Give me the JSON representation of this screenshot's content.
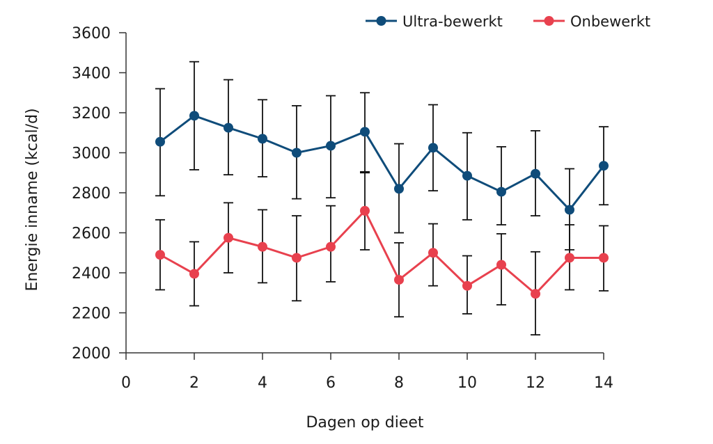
{
  "chart_data": {
    "type": "line",
    "title": "",
    "xlabel": "Dagen op dieet",
    "ylabel": "Energie inname (kcal/d)",
    "xlim": [
      0,
      14
    ],
    "ylim": [
      2000,
      3600
    ],
    "xticks": [
      0,
      2,
      4,
      6,
      8,
      10,
      12,
      14
    ],
    "yticks": [
      2000,
      2200,
      2400,
      2600,
      2800,
      3000,
      3200,
      3400,
      3600
    ],
    "grid": false,
    "legend": "top-right",
    "x": [
      1,
      2,
      3,
      4,
      5,
      6,
      7,
      8,
      9,
      10,
      11,
      12,
      13,
      14
    ],
    "series": [
      {
        "name": "Ultra-bewerkt",
        "color": "#0f4c7a",
        "values": [
          3055,
          3185,
          3125,
          3070,
          3000,
          3035,
          3105,
          2820,
          3025,
          2885,
          2805,
          2895,
          2715,
          2935
        ],
        "error_low": [
          2785,
          2915,
          2890,
          2880,
          2770,
          2775,
          2905,
          2600,
          2810,
          2665,
          2640,
          2685,
          2515,
          2740
        ],
        "error_high": [
          3320,
          3455,
          3365,
          3265,
          3235,
          3285,
          3300,
          3045,
          3240,
          3100,
          3030,
          3110,
          2920,
          3130
        ]
      },
      {
        "name": "Onbewerkt",
        "color": "#e8414e",
        "values": [
          2490,
          2395,
          2575,
          2530,
          2475,
          2530,
          2710,
          2365,
          2500,
          2335,
          2440,
          2295,
          2475,
          2475
        ],
        "error_low": [
          2315,
          2235,
          2400,
          2350,
          2260,
          2355,
          2515,
          2180,
          2335,
          2195,
          2240,
          2090,
          2315,
          2310
        ],
        "error_high": [
          2665,
          2555,
          2750,
          2715,
          2685,
          2735,
          2900,
          2550,
          2645,
          2485,
          2595,
          2505,
          2640,
          2635
        ]
      }
    ]
  }
}
